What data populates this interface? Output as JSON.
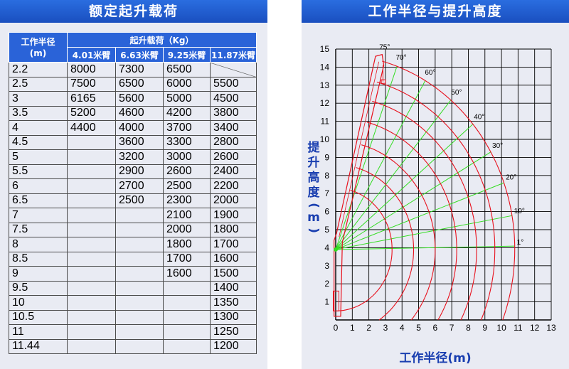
{
  "left": {
    "title": "额定起升载荷",
    "radius_header": [
      "工作半径",
      "(m)"
    ],
    "load_header": "起升载荷（Kg）",
    "boom_headers": [
      "4.01米臂",
      "6.63米臂",
      "9.25米臂",
      "11.87米臂"
    ],
    "rows": [
      [
        "2.2",
        "8000",
        "7300",
        "6500",
        ""
      ],
      [
        "2.5",
        "7500",
        "6500",
        "6000",
        "5500"
      ],
      [
        "3",
        "6165",
        "5600",
        "5000",
        "4500"
      ],
      [
        "3.5",
        "5200",
        "4600",
        "4200",
        "3800"
      ],
      [
        "4",
        "4400",
        "4000",
        "3700",
        "3400"
      ],
      [
        "4.5",
        "",
        "3600",
        "3300",
        "2800"
      ],
      [
        "5",
        "",
        "3200",
        "3000",
        "2600"
      ],
      [
        "5.5",
        "",
        "2900",
        "2600",
        "2400"
      ],
      [
        "6",
        "",
        "2700",
        "2500",
        "2200"
      ],
      [
        "6.5",
        "",
        "2500",
        "2300",
        "2000"
      ],
      [
        "7",
        "",
        "",
        "2100",
        "1900"
      ],
      [
        "7.5",
        "",
        "",
        "2000",
        "1800"
      ],
      [
        "8",
        "",
        "",
        "1800",
        "1700"
      ],
      [
        "8.5",
        "",
        "",
        "1700",
        "1600"
      ],
      [
        "9",
        "",
        "",
        "1600",
        "1500"
      ],
      [
        "9.5",
        "",
        "",
        "",
        "1400"
      ],
      [
        "10",
        "",
        "",
        "",
        "1350"
      ],
      [
        "10.5",
        "",
        "",
        "",
        "1300"
      ],
      [
        "11",
        "",
        "",
        "",
        "1250"
      ],
      [
        "11.44",
        "",
        "",
        "",
        "1200"
      ]
    ]
  },
  "right": {
    "title": "工作半径与提升高度",
    "ylabel": "提升高度(m)",
    "xlabel": "工作半径(m)"
  },
  "chart_data": {
    "type": "line",
    "title": "工作半径与提升高度",
    "xlabel": "工作半径(m)",
    "ylabel": "提升高度(m)",
    "xlim": [
      0,
      13
    ],
    "ylim": [
      0,
      15
    ],
    "x_ticks": [
      0,
      1,
      2,
      3,
      4,
      5,
      6,
      7,
      8,
      9,
      10,
      11,
      12,
      13
    ],
    "y_ticks": [
      1,
      2,
      3,
      4,
      5,
      6,
      7,
      8,
      9,
      10,
      11,
      12,
      13,
      14,
      15
    ],
    "grid": true,
    "pivot": [
      0,
      3.9
    ],
    "arc_radii": [
      3.4,
      4.7,
      6.0,
      7.3,
      8.5,
      9.6,
      10.8
    ],
    "angles": [
      1,
      10,
      20,
      30,
      40,
      50,
      60,
      70,
      75
    ],
    "angle_labels": [
      "1°",
      "10°",
      "20°",
      "30°",
      "40°",
      "50°",
      "60°",
      "70°",
      "75°"
    ],
    "colors": {
      "arc": "#e8101c",
      "ray": "#33dd22",
      "grid": "#000000",
      "boom": "#e8101c"
    }
  }
}
